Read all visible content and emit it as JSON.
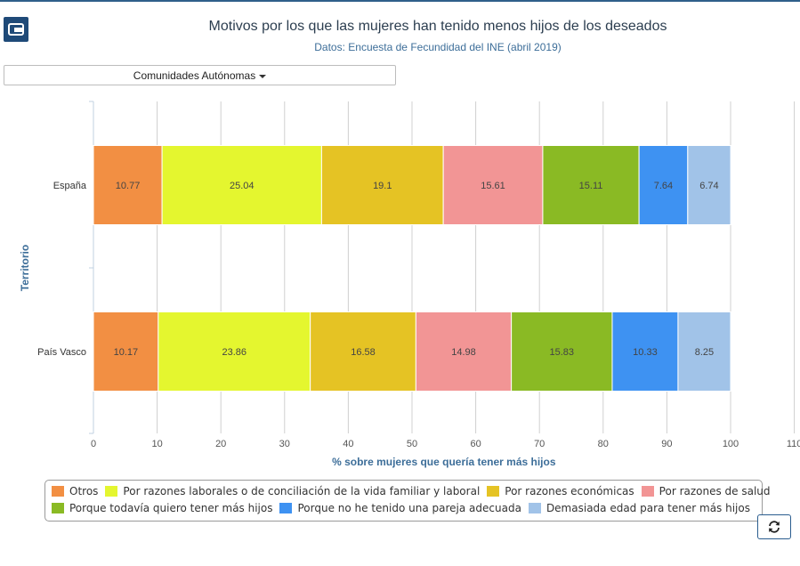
{
  "header": {
    "title": "Motivos por los que las mujeres han tenido menos hijos de los deseados",
    "subtitle": "Datos: Encuesta de Fecundidad del INE (abril 2019)",
    "logo_icon": "ine-logo-icon"
  },
  "filter": {
    "label": "Comunidades Autónomas"
  },
  "toolbar": {
    "refresh_icon": "refresh-icon"
  },
  "chart_data": {
    "type": "bar",
    "orientation": "horizontal",
    "stacked": true,
    "categories": [
      "España",
      "País Vasco"
    ],
    "xlabel": "% sobre mujeres que quería tener más hijos",
    "ylabel": "Territorio",
    "xlim": [
      0,
      110
    ],
    "xticks": [
      0,
      10,
      20,
      30,
      40,
      50,
      60,
      70,
      80,
      90,
      100,
      110
    ],
    "grid": true,
    "legend_position": "bottom",
    "series": [
      {
        "name": "Otros",
        "color": "#f28f43",
        "values": [
          10.77,
          10.17
        ]
      },
      {
        "name": "Por razones laborales o de conciliación de la vida familiar y laboral",
        "color": "#e4f62f",
        "values": [
          25.04,
          23.86
        ]
      },
      {
        "name": "Por razones económicas",
        "color": "#e5c324",
        "values": [
          19.1,
          16.58
        ]
      },
      {
        "name": "Por razones de salud",
        "color": "#f29595",
        "values": [
          15.61,
          14.98
        ]
      },
      {
        "name": "Porque todavía quiero tener más hijos",
        "color": "#8aba24",
        "values": [
          15.11,
          15.83
        ]
      },
      {
        "name": "Porque no he tenido una pareja adecuada",
        "color": "#3e92f2",
        "values": [
          7.64,
          10.33
        ]
      },
      {
        "name": "Demasiada edad para tener más hijos",
        "color": "#a1c3e8",
        "values": [
          6.74,
          8.25
        ]
      }
    ]
  }
}
